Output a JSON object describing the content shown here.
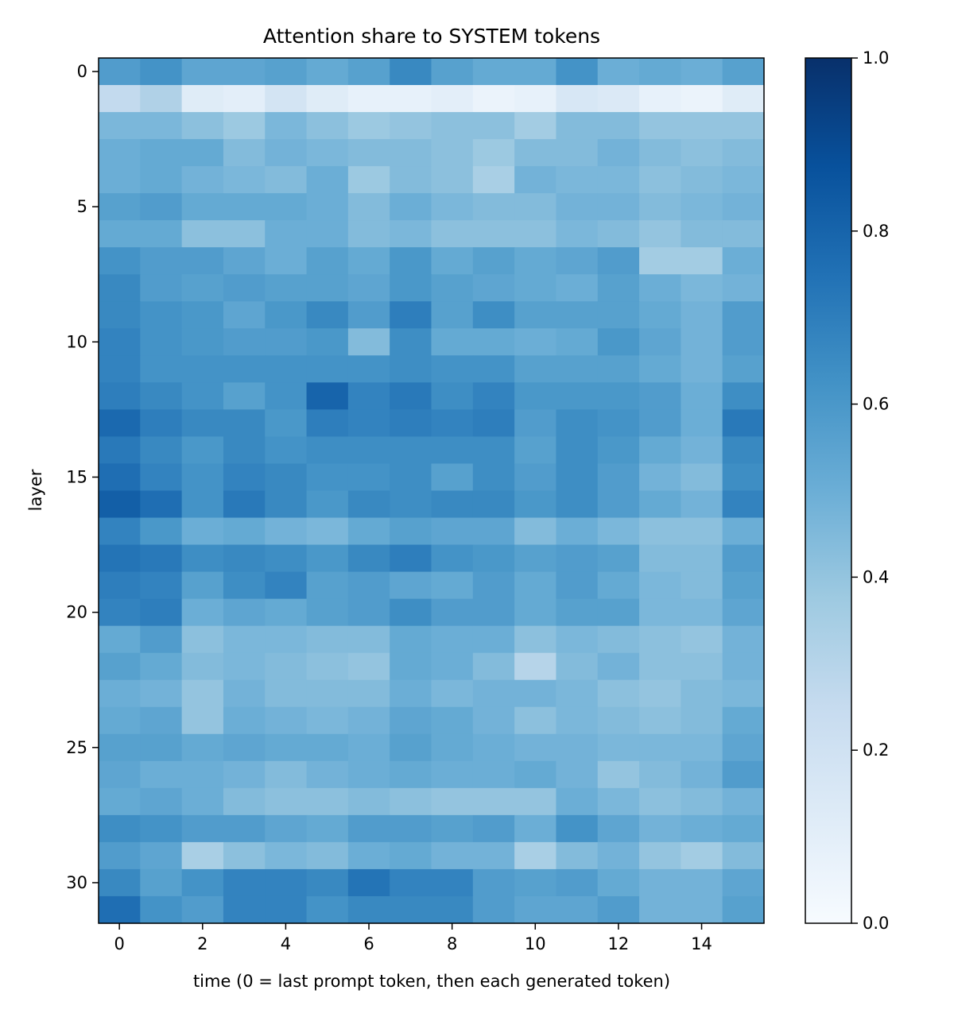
{
  "chart_data": {
    "type": "heatmap",
    "title": "Attention share to SYSTEM tokens",
    "xlabel": "time (0 = last prompt token, then each generated token)",
    "ylabel": "layer",
    "x_ticks": [
      0,
      2,
      4,
      6,
      8,
      10,
      12,
      14
    ],
    "y_ticks": [
      0,
      5,
      10,
      15,
      20,
      25,
      30
    ],
    "x": [
      0,
      1,
      2,
      3,
      4,
      5,
      6,
      7,
      8,
      9,
      10,
      11,
      12,
      13,
      14,
      15
    ],
    "y": [
      0,
      1,
      2,
      3,
      4,
      5,
      6,
      7,
      8,
      9,
      10,
      11,
      12,
      13,
      14,
      15,
      16,
      17,
      18,
      19,
      20,
      21,
      22,
      23,
      24,
      25,
      26,
      27,
      28,
      29,
      30,
      31
    ],
    "colormap": "Blues",
    "vmin": 0.0,
    "vmax": 1.0,
    "colorbar_ticks": [
      "0.0",
      "0.2",
      "0.4",
      "0.6",
      "0.8",
      "1.0"
    ],
    "colors": {
      "low": "#f7fbff",
      "high": "#08306b",
      "axis": "#000000"
    },
    "values": [
      [
        0.58,
        0.62,
        0.54,
        0.54,
        0.56,
        0.52,
        0.56,
        0.66,
        0.56,
        0.52,
        0.52,
        0.62,
        0.5,
        0.52,
        0.5,
        0.56
      ],
      [
        0.26,
        0.32,
        0.12,
        0.1,
        0.18,
        0.12,
        0.08,
        0.08,
        0.1,
        0.06,
        0.08,
        0.16,
        0.14,
        0.08,
        0.06,
        0.12
      ],
      [
        0.46,
        0.46,
        0.42,
        0.38,
        0.46,
        0.42,
        0.38,
        0.4,
        0.42,
        0.42,
        0.36,
        0.44,
        0.44,
        0.4,
        0.4,
        0.4
      ],
      [
        0.5,
        0.52,
        0.52,
        0.44,
        0.48,
        0.46,
        0.44,
        0.44,
        0.42,
        0.38,
        0.44,
        0.44,
        0.48,
        0.44,
        0.42,
        0.44
      ],
      [
        0.5,
        0.52,
        0.48,
        0.46,
        0.44,
        0.5,
        0.38,
        0.44,
        0.42,
        0.34,
        0.48,
        0.46,
        0.46,
        0.42,
        0.44,
        0.46
      ],
      [
        0.56,
        0.58,
        0.52,
        0.52,
        0.52,
        0.5,
        0.44,
        0.5,
        0.46,
        0.44,
        0.44,
        0.48,
        0.48,
        0.44,
        0.46,
        0.48
      ],
      [
        0.52,
        0.52,
        0.42,
        0.42,
        0.5,
        0.5,
        0.44,
        0.46,
        0.42,
        0.42,
        0.42,
        0.46,
        0.44,
        0.4,
        0.44,
        0.44
      ],
      [
        0.62,
        0.58,
        0.58,
        0.54,
        0.5,
        0.56,
        0.52,
        0.6,
        0.52,
        0.56,
        0.52,
        0.54,
        0.58,
        0.36,
        0.36,
        0.5
      ],
      [
        0.66,
        0.58,
        0.56,
        0.58,
        0.56,
        0.56,
        0.54,
        0.6,
        0.56,
        0.54,
        0.52,
        0.5,
        0.56,
        0.5,
        0.46,
        0.48
      ],
      [
        0.66,
        0.62,
        0.6,
        0.54,
        0.6,
        0.66,
        0.58,
        0.7,
        0.56,
        0.64,
        0.56,
        0.56,
        0.56,
        0.52,
        0.48,
        0.58
      ],
      [
        0.68,
        0.62,
        0.6,
        0.58,
        0.58,
        0.6,
        0.44,
        0.64,
        0.52,
        0.52,
        0.5,
        0.52,
        0.6,
        0.54,
        0.48,
        0.58
      ],
      [
        0.68,
        0.62,
        0.62,
        0.62,
        0.62,
        0.62,
        0.62,
        0.64,
        0.62,
        0.62,
        0.56,
        0.56,
        0.56,
        0.52,
        0.48,
        0.56
      ],
      [
        0.7,
        0.66,
        0.62,
        0.56,
        0.62,
        0.8,
        0.68,
        0.72,
        0.64,
        0.68,
        0.6,
        0.6,
        0.6,
        0.58,
        0.5,
        0.64
      ],
      [
        0.78,
        0.7,
        0.66,
        0.66,
        0.6,
        0.7,
        0.68,
        0.7,
        0.68,
        0.7,
        0.58,
        0.64,
        0.62,
        0.58,
        0.5,
        0.72
      ],
      [
        0.72,
        0.66,
        0.6,
        0.66,
        0.62,
        0.64,
        0.64,
        0.64,
        0.64,
        0.64,
        0.56,
        0.64,
        0.6,
        0.52,
        0.48,
        0.66
      ],
      [
        0.76,
        0.68,
        0.62,
        0.68,
        0.66,
        0.62,
        0.62,
        0.64,
        0.56,
        0.64,
        0.58,
        0.64,
        0.58,
        0.48,
        0.44,
        0.64
      ],
      [
        0.82,
        0.76,
        0.62,
        0.72,
        0.66,
        0.6,
        0.66,
        0.64,
        0.66,
        0.66,
        0.6,
        0.64,
        0.58,
        0.52,
        0.48,
        0.68
      ],
      [
        0.68,
        0.6,
        0.5,
        0.52,
        0.48,
        0.46,
        0.52,
        0.56,
        0.54,
        0.54,
        0.44,
        0.5,
        0.46,
        0.42,
        0.42,
        0.5
      ],
      [
        0.74,
        0.72,
        0.64,
        0.66,
        0.64,
        0.6,
        0.66,
        0.7,
        0.62,
        0.6,
        0.56,
        0.58,
        0.56,
        0.44,
        0.44,
        0.58
      ],
      [
        0.7,
        0.68,
        0.56,
        0.64,
        0.68,
        0.56,
        0.58,
        0.54,
        0.52,
        0.58,
        0.52,
        0.58,
        0.52,
        0.46,
        0.44,
        0.56
      ],
      [
        0.68,
        0.7,
        0.5,
        0.54,
        0.52,
        0.56,
        0.58,
        0.64,
        0.58,
        0.58,
        0.52,
        0.56,
        0.56,
        0.46,
        0.46,
        0.54
      ],
      [
        0.52,
        0.58,
        0.42,
        0.46,
        0.46,
        0.44,
        0.44,
        0.52,
        0.5,
        0.5,
        0.42,
        0.46,
        0.44,
        0.42,
        0.4,
        0.48
      ],
      [
        0.56,
        0.52,
        0.44,
        0.46,
        0.44,
        0.42,
        0.4,
        0.52,
        0.5,
        0.44,
        0.3,
        0.44,
        0.48,
        0.42,
        0.42,
        0.48
      ],
      [
        0.5,
        0.48,
        0.4,
        0.48,
        0.44,
        0.44,
        0.44,
        0.5,
        0.46,
        0.48,
        0.48,
        0.46,
        0.42,
        0.4,
        0.44,
        0.46
      ],
      [
        0.52,
        0.54,
        0.4,
        0.5,
        0.48,
        0.46,
        0.48,
        0.54,
        0.52,
        0.48,
        0.42,
        0.46,
        0.44,
        0.42,
        0.44,
        0.52
      ],
      [
        0.56,
        0.56,
        0.52,
        0.54,
        0.52,
        0.52,
        0.5,
        0.56,
        0.52,
        0.5,
        0.48,
        0.48,
        0.46,
        0.46,
        0.46,
        0.54
      ],
      [
        0.54,
        0.5,
        0.5,
        0.48,
        0.44,
        0.48,
        0.5,
        0.52,
        0.5,
        0.5,
        0.52,
        0.48,
        0.4,
        0.44,
        0.48,
        0.58
      ],
      [
        0.52,
        0.54,
        0.5,
        0.44,
        0.42,
        0.42,
        0.44,
        0.42,
        0.4,
        0.4,
        0.4,
        0.5,
        0.46,
        0.42,
        0.44,
        0.48
      ],
      [
        0.64,
        0.62,
        0.58,
        0.58,
        0.54,
        0.52,
        0.58,
        0.58,
        0.56,
        0.58,
        0.5,
        0.62,
        0.54,
        0.48,
        0.5,
        0.52
      ],
      [
        0.58,
        0.54,
        0.34,
        0.42,
        0.46,
        0.44,
        0.5,
        0.52,
        0.48,
        0.48,
        0.34,
        0.44,
        0.48,
        0.4,
        0.36,
        0.44
      ],
      [
        0.66,
        0.56,
        0.62,
        0.68,
        0.68,
        0.66,
        0.74,
        0.68,
        0.68,
        0.58,
        0.56,
        0.58,
        0.52,
        0.48,
        0.48,
        0.54
      ],
      [
        0.76,
        0.62,
        0.58,
        0.68,
        0.68,
        0.62,
        0.66,
        0.66,
        0.66,
        0.58,
        0.54,
        0.54,
        0.58,
        0.48,
        0.48,
        0.56
      ]
    ]
  }
}
